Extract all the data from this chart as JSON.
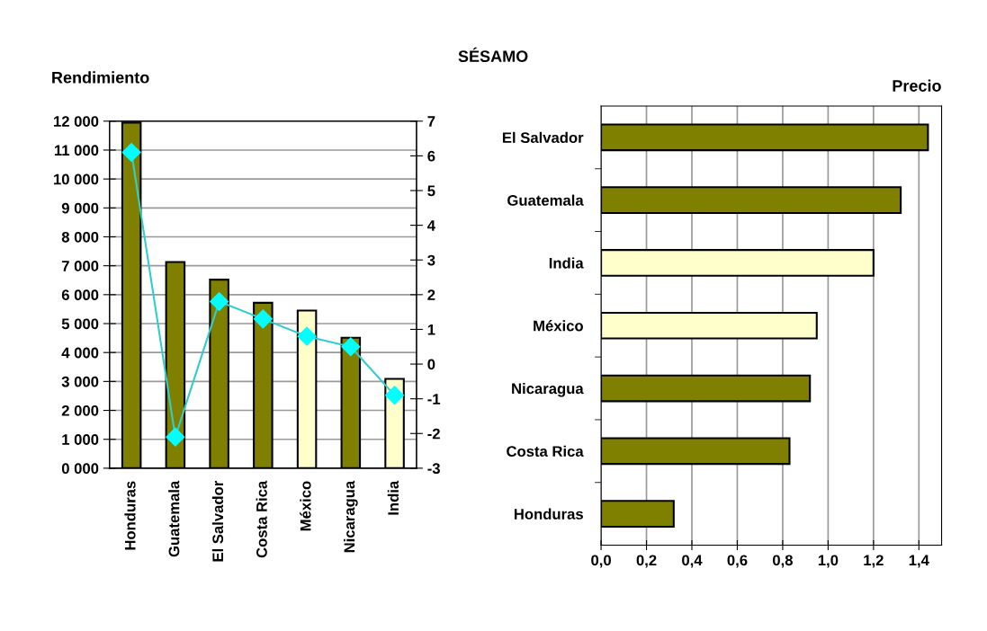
{
  "chart_data": [
    {
      "type": "bar",
      "ylabel": "Rendimiento",
      "categories": [
        "Honduras",
        "Guatemala",
        "El Salvador",
        "Costa Rica",
        "México",
        "Nicaragua",
        "India"
      ],
      "series": [
        {
          "type": "bar",
          "colors": [
            "#808000",
            "#808000",
            "#808000",
            "#808000",
            "#ffffcc",
            "#808000",
            "#ffffcc"
          ],
          "values": [
            11950,
            7130,
            6520,
            5720,
            5450,
            4510,
            3090
          ]
        },
        {
          "type": "line",
          "axis": "y2",
          "color": "#33cccc",
          "values": [
            6.1,
            -2.1,
            1.8,
            1.3,
            0.8,
            0.5,
            -0.9
          ]
        }
      ],
      "marker": "diamond",
      "grid": "y",
      "ylim": [
        0,
        12000
      ],
      "yticks": [
        {
          "value": 0,
          "label": "0 000"
        },
        {
          "value": 1000,
          "label": "1 000"
        },
        {
          "value": 2000,
          "label": "2 000"
        },
        {
          "value": 3000,
          "label": "3 000"
        },
        {
          "value": 4000,
          "label": "4 000"
        },
        {
          "value": 5000,
          "label": "5 000"
        },
        {
          "value": 6000,
          "label": "6 000"
        },
        {
          "value": 7000,
          "label": "7 000"
        },
        {
          "value": 8000,
          "label": "8 000"
        },
        {
          "value": 9000,
          "label": "9 000"
        },
        {
          "value": 10000,
          "label": "10 000"
        },
        {
          "value": 11000,
          "label": "11 000"
        },
        {
          "value": 12000,
          "label": "12 000"
        }
      ],
      "y2lim": [
        -3,
        7
      ],
      "y2ticks": [
        -3,
        -2,
        -1,
        0,
        1,
        2,
        3,
        4,
        5,
        6,
        7
      ]
    },
    {
      "type": "bar",
      "orientation": "horizontal",
      "title": "SÉSAMO",
      "xlabel": "Precio",
      "categories": [
        "El Salvador",
        "Guatemala",
        "India",
        "México",
        "Nicaragua",
        "Costa Rica",
        "Honduras"
      ],
      "colors": [
        "#808000",
        "#808000",
        "#ffffcc",
        "#ffffcc",
        "#808000",
        "#808000",
        "#808000"
      ],
      "values": [
        1.44,
        1.32,
        1.2,
        0.95,
        0.92,
        0.83,
        0.32
      ],
      "grid": "x",
      "xlim": [
        0,
        1.5
      ],
      "xticks": [
        {
          "value": 0,
          "label": "0,0"
        },
        {
          "value": 0.2,
          "label": "0,2"
        },
        {
          "value": 0.4,
          "label": "0,4"
        },
        {
          "value": 0.6,
          "label": "0,6"
        },
        {
          "value": 0.8,
          "label": "0,8"
        },
        {
          "value": 1.0,
          "label": "1,0"
        },
        {
          "value": 1.2,
          "label": "1,2"
        },
        {
          "value": 1.4,
          "label": "1,4"
        }
      ]
    }
  ]
}
